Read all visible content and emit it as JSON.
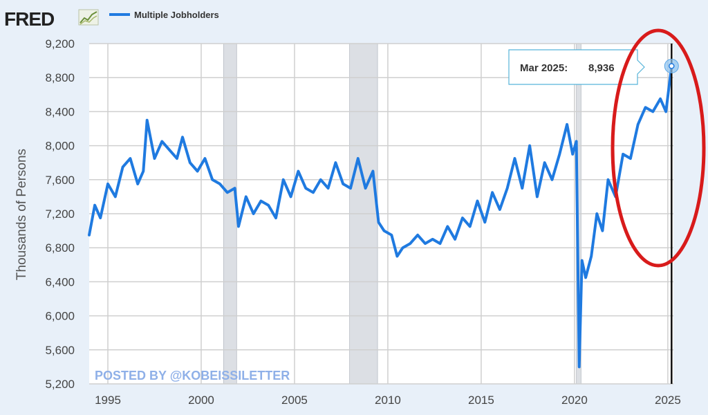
{
  "brand": {
    "name": "FRED",
    "logo_icon": "line-chart-logo-icon"
  },
  "colors": {
    "series": "#1f7ae0",
    "recession": "#dcdfe4",
    "annotation": "#d81b1b",
    "grid": "#cfcfcf"
  },
  "watermark": "POSTED BY @KOBEISSILETTER",
  "tooltip": {
    "label": "Mar 2025:",
    "value": "8,936"
  },
  "chart_data": {
    "type": "line",
    "title": "",
    "xlabel": "",
    "ylabel": "Thousands of Persons",
    "xlim": [
      1994.0,
      2025.3
    ],
    "ylim": [
      5200,
      9200
    ],
    "grid": true,
    "legend_position": "top-left",
    "y_ticks": [
      "5,200",
      "5,600",
      "6,000",
      "6,400",
      "6,800",
      "7,200",
      "7,600",
      "8,000",
      "8,400",
      "8,800",
      "9,200"
    ],
    "y_tick_values": [
      5200,
      5600,
      6000,
      6400,
      6800,
      7200,
      7600,
      8000,
      8400,
      8800,
      9200
    ],
    "x_ticks": [
      "1995",
      "2000",
      "2005",
      "2010",
      "2015",
      "2020",
      "2025"
    ],
    "x_tick_values": [
      1995,
      2000,
      2005,
      2010,
      2015,
      2020,
      2025
    ],
    "recessions": [
      [
        2001.2,
        2001.9
      ],
      [
        2007.95,
        2009.45
      ],
      [
        2020.1,
        2020.35
      ]
    ],
    "series": [
      {
        "name": "Multiple Jobholders",
        "x": [
          1994.0,
          1994.3,
          1994.6,
          1995.0,
          1995.4,
          1995.8,
          1996.2,
          1996.6,
          1996.9,
          1997.1,
          1997.5,
          1997.9,
          1998.3,
          1998.7,
          1999.0,
          1999.4,
          1999.8,
          2000.2,
          2000.6,
          2001.0,
          2001.4,
          2001.8,
          2002.0,
          2002.4,
          2002.8,
          2003.2,
          2003.6,
          2004.0,
          2004.4,
          2004.8,
          2005.2,
          2005.6,
          2006.0,
          2006.4,
          2006.8,
          2007.2,
          2007.6,
          2008.0,
          2008.4,
          2008.8,
          2009.2,
          2009.5,
          2009.8,
          2010.2,
          2010.5,
          2010.8,
          2011.2,
          2011.6,
          2012.0,
          2012.4,
          2012.8,
          2013.2,
          2013.6,
          2014.0,
          2014.4,
          2014.8,
          2015.2,
          2015.6,
          2016.0,
          2016.4,
          2016.8,
          2017.2,
          2017.6,
          2018.0,
          2018.4,
          2018.8,
          2019.2,
          2019.6,
          2019.9,
          2020.1,
          2020.25,
          2020.4,
          2020.6,
          2020.9,
          2021.2,
          2021.5,
          2021.8,
          2022.2,
          2022.6,
          2023.0,
          2023.4,
          2023.8,
          2024.2,
          2024.6,
          2024.9,
          2025.2
        ],
        "values": [
          6950,
          7300,
          7150,
          7550,
          7400,
          7750,
          7850,
          7550,
          7700,
          8300,
          7850,
          8050,
          7950,
          7850,
          8100,
          7800,
          7700,
          7850,
          7600,
          7550,
          7450,
          7500,
          7050,
          7400,
          7200,
          7350,
          7300,
          7150,
          7600,
          7400,
          7700,
          7500,
          7450,
          7600,
          7500,
          7800,
          7550,
          7500,
          7850,
          7500,
          7700,
          7100,
          7000,
          6950,
          6700,
          6800,
          6850,
          6950,
          6850,
          6900,
          6850,
          7050,
          6900,
          7150,
          7050,
          7350,
          7100,
          7450,
          7250,
          7500,
          7850,
          7500,
          8000,
          7400,
          7800,
          7600,
          7900,
          8250,
          7900,
          8050,
          5400,
          6650,
          6450,
          6700,
          7200,
          7000,
          7600,
          7400,
          7900,
          7850,
          8250,
          8450,
          8400,
          8550,
          8400,
          8936
        ]
      }
    ]
  }
}
